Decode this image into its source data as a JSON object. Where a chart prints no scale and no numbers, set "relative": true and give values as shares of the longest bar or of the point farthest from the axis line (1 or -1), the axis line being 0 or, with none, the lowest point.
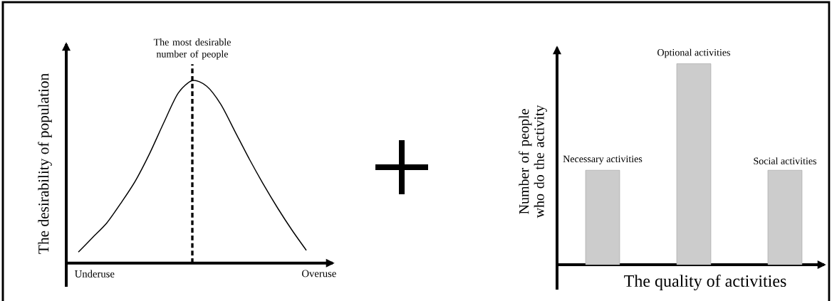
{
  "chart_data": [
    {
      "type": "line",
      "relative": true,
      "ylabel": "The desirability of population",
      "color": "#000000",
      "categories": [
        null,
        null,
        null,
        null,
        null,
        null,
        null,
        null,
        null,
        null,
        null,
        null,
        null,
        null,
        null,
        null,
        null
      ],
      "values": [
        0.06,
        0.14,
        0.22,
        0.33,
        0.45,
        0.6,
        0.77,
        0.93,
        1.0,
        0.97,
        0.87,
        0.72,
        0.57,
        0.43,
        0.3,
        0.18,
        0.07
      ],
      "annotations": [
        "The most desirable number of people",
        "Underuse",
        "Overuse"
      ]
    },
    {
      "type": "bar",
      "relative": true,
      "xlabel": "The quality of activities",
      "ylabel": "Number of people who do the activity",
      "color": "#cccccc",
      "categories": [
        "Necessary activities",
        "Optional activities",
        "Social activities"
      ],
      "values": [
        0.47,
        1.0,
        0.47
      ]
    }
  ]
}
